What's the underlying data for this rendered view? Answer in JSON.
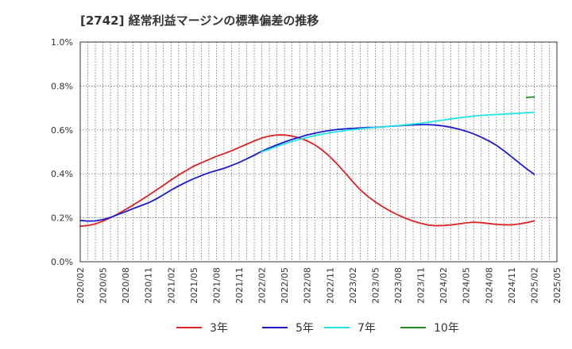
{
  "chart_data": {
    "type": "line",
    "title": "[2742]  経常利益マージンの標準偏差の推移",
    "xlabel": "",
    "ylabel": "",
    "ylim": [
      0,
      1.0
    ],
    "y_ticks": [
      "0.0%",
      "0.2%",
      "0.4%",
      "0.6%",
      "0.8%",
      "1.0%"
    ],
    "x_ticks": [
      "2020/02",
      "2020/05",
      "2020/08",
      "2020/11",
      "2021/02",
      "2021/05",
      "2021/08",
      "2021/11",
      "2022/02",
      "2022/05",
      "2022/08",
      "2022/11",
      "2023/02",
      "2023/05",
      "2023/08",
      "2023/11",
      "2024/02",
      "2024/05",
      "2024/08",
      "2024/11",
      "2025/02",
      "2025/05"
    ],
    "grid": true,
    "legend_position": "bottom",
    "series": [
      {
        "name": "3年",
        "color": "#dd2222",
        "x": [
          "2020/02",
          "2020/03",
          "2020/04",
          "2020/05",
          "2020/06",
          "2020/07",
          "2020/08",
          "2020/09",
          "2020/10",
          "2020/11",
          "2020/12",
          "2021/01",
          "2021/02",
          "2021/03",
          "2021/04",
          "2021/05",
          "2021/06",
          "2021/07",
          "2021/08",
          "2021/09",
          "2021/10",
          "2021/11",
          "2021/12",
          "2022/01",
          "2022/02",
          "2022/03",
          "2022/04",
          "2022/05",
          "2022/06",
          "2022/07",
          "2022/08",
          "2022/09",
          "2022/10",
          "2022/11",
          "2022/12",
          "2023/01",
          "2023/02",
          "2023/03",
          "2023/04",
          "2023/05",
          "2023/06",
          "2023/07",
          "2023/08",
          "2023/09",
          "2023/10",
          "2023/11",
          "2023/12",
          "2024/01",
          "2024/02",
          "2024/03",
          "2024/04",
          "2024/05",
          "2024/06",
          "2024/07",
          "2024/08",
          "2024/09",
          "2024/10",
          "2024/11",
          "2024/12",
          "2025/01",
          "2025/02"
        ],
        "values": [
          0.162,
          0.165,
          0.172,
          0.185,
          0.2,
          0.218,
          0.238,
          0.258,
          0.28,
          0.302,
          0.325,
          0.348,
          0.372,
          0.395,
          0.415,
          0.435,
          0.45,
          0.465,
          0.48,
          0.492,
          0.505,
          0.52,
          0.535,
          0.55,
          0.563,
          0.572,
          0.577,
          0.577,
          0.572,
          0.563,
          0.55,
          0.532,
          0.508,
          0.478,
          0.443,
          0.405,
          0.365,
          0.328,
          0.298,
          0.272,
          0.25,
          0.23,
          0.213,
          0.198,
          0.185,
          0.175,
          0.167,
          0.164,
          0.165,
          0.168,
          0.172,
          0.177,
          0.18,
          0.178,
          0.174,
          0.17,
          0.168,
          0.168,
          0.172,
          0.178,
          0.186
        ]
      },
      {
        "name": "5年",
        "color": "#1a1acc",
        "x": [
          "2020/02",
          "2020/03",
          "2020/04",
          "2020/05",
          "2020/06",
          "2020/07",
          "2020/08",
          "2020/09",
          "2020/10",
          "2020/11",
          "2020/12",
          "2021/01",
          "2021/02",
          "2021/03",
          "2021/04",
          "2021/05",
          "2021/06",
          "2021/07",
          "2021/08",
          "2021/09",
          "2021/10",
          "2021/11",
          "2021/12",
          "2022/01",
          "2022/02",
          "2022/03",
          "2022/04",
          "2022/05",
          "2022/06",
          "2022/07",
          "2022/08",
          "2022/09",
          "2022/10",
          "2022/11",
          "2022/12",
          "2023/01",
          "2023/02",
          "2023/03",
          "2023/04",
          "2023/05",
          "2023/06",
          "2023/07",
          "2023/08",
          "2023/09",
          "2023/10",
          "2023/11",
          "2023/12",
          "2024/01",
          "2024/02",
          "2024/03",
          "2024/04",
          "2024/05",
          "2024/06",
          "2024/07",
          "2024/08",
          "2024/09",
          "2024/10",
          "2024/11",
          "2024/12",
          "2025/01",
          "2025/02"
        ],
        "values": [
          0.188,
          0.185,
          0.186,
          0.192,
          0.202,
          0.215,
          0.228,
          0.242,
          0.255,
          0.268,
          0.285,
          0.305,
          0.326,
          0.345,
          0.362,
          0.378,
          0.392,
          0.405,
          0.415,
          0.425,
          0.438,
          0.452,
          0.468,
          0.485,
          0.503,
          0.518,
          0.532,
          0.545,
          0.557,
          0.567,
          0.577,
          0.585,
          0.592,
          0.598,
          0.602,
          0.605,
          0.607,
          0.609,
          0.611,
          0.612,
          0.614,
          0.617,
          0.619,
          0.621,
          0.623,
          0.624,
          0.624,
          0.622,
          0.618,
          0.612,
          0.604,
          0.594,
          0.582,
          0.567,
          0.55,
          0.53,
          0.505,
          0.478,
          0.45,
          0.423,
          0.398
        ]
      },
      {
        "name": "7年",
        "color": "#22e5e5",
        "x": [
          "2022/02",
          "2022/03",
          "2022/04",
          "2022/05",
          "2022/06",
          "2022/07",
          "2022/08",
          "2022/09",
          "2022/10",
          "2022/11",
          "2022/12",
          "2023/01",
          "2023/02",
          "2023/03",
          "2023/04",
          "2023/05",
          "2023/06",
          "2023/07",
          "2023/08",
          "2023/09",
          "2023/10",
          "2023/11",
          "2023/12",
          "2024/01",
          "2024/02",
          "2024/03",
          "2024/04",
          "2024/05",
          "2024/06",
          "2024/07",
          "2024/08",
          "2024/09",
          "2024/10",
          "2024/11",
          "2024/12",
          "2025/01",
          "2025/02"
        ],
        "values": [
          0.5,
          0.512,
          0.525,
          0.537,
          0.548,
          0.557,
          0.566,
          0.574,
          0.581,
          0.587,
          0.592,
          0.597,
          0.601,
          0.605,
          0.608,
          0.611,
          0.614,
          0.617,
          0.62,
          0.623,
          0.627,
          0.631,
          0.635,
          0.64,
          0.645,
          0.65,
          0.655,
          0.659,
          0.663,
          0.666,
          0.668,
          0.67,
          0.672,
          0.674,
          0.676,
          0.678,
          0.68
        ]
      },
      {
        "name": "10年",
        "color": "#228b22",
        "x": [
          "2025/01",
          "2025/02"
        ],
        "values": [
          0.748,
          0.75
        ]
      }
    ]
  }
}
